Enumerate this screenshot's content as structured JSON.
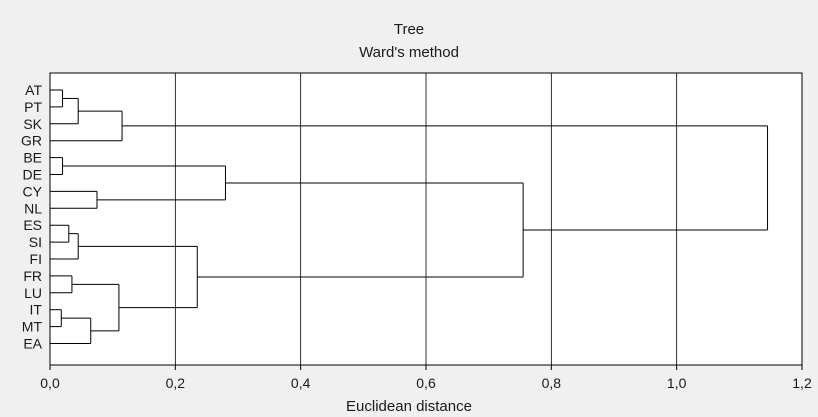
{
  "chart_data": {
    "type": "dendrogram",
    "title": "Tree",
    "subtitle": "Ward's method",
    "xlabel": "Euclidean distance",
    "ylabel": "",
    "xlim": [
      0,
      1.2
    ],
    "x_ticks": [
      0,
      0.2,
      0.4,
      0.6,
      0.8,
      1.0,
      1.2
    ],
    "x_tick_labels": [
      "0,0",
      "0,2",
      "0,4",
      "0,6",
      "0,8",
      "1,0",
      "1,2"
    ],
    "grid": true,
    "leaves": [
      "AT",
      "PT",
      "SK",
      "GR",
      "BE",
      "DE",
      "CY",
      "NL",
      "ES",
      "SI",
      "FI",
      "FR",
      "LU",
      "IT",
      "MT",
      "EA"
    ],
    "merges": [
      {
        "left": "AT",
        "right": "PT",
        "height": 0.02
      },
      {
        "left": "AT+PT",
        "right": "SK",
        "height": 0.045
      },
      {
        "left": "AT+PT+SK",
        "right": "GR",
        "height": 0.115
      },
      {
        "left": "BE",
        "right": "DE",
        "height": 0.02
      },
      {
        "left": "CY",
        "right": "NL",
        "height": 0.075
      },
      {
        "left": "BE+DE",
        "right": "CY+NL",
        "height": 0.28
      },
      {
        "left": "ES",
        "right": "SI",
        "height": 0.03
      },
      {
        "left": "ES+SI",
        "right": "FI",
        "height": 0.045
      },
      {
        "left": "FR",
        "right": "LU",
        "height": 0.035
      },
      {
        "left": "IT",
        "right": "MT",
        "height": 0.018
      },
      {
        "left": "IT+MT",
        "right": "EA",
        "height": 0.065
      },
      {
        "left": "FR+LU",
        "right": "IT+MT+EA",
        "height": 0.11
      },
      {
        "left": "ES+SI+FI",
        "right": "FR+LU+IT+MT+EA",
        "height": 0.235
      },
      {
        "left": "BE+DE+CY+NL",
        "right": "ES+SI+FI+FR+LU+IT+MT+EA",
        "height": 0.755
      },
      {
        "left": "AT+PT+SK+GR",
        "right": "BE+DE+CY+NL+ES+SI+FI+FR+LU+IT+MT+EA",
        "height": 1.145
      }
    ]
  }
}
